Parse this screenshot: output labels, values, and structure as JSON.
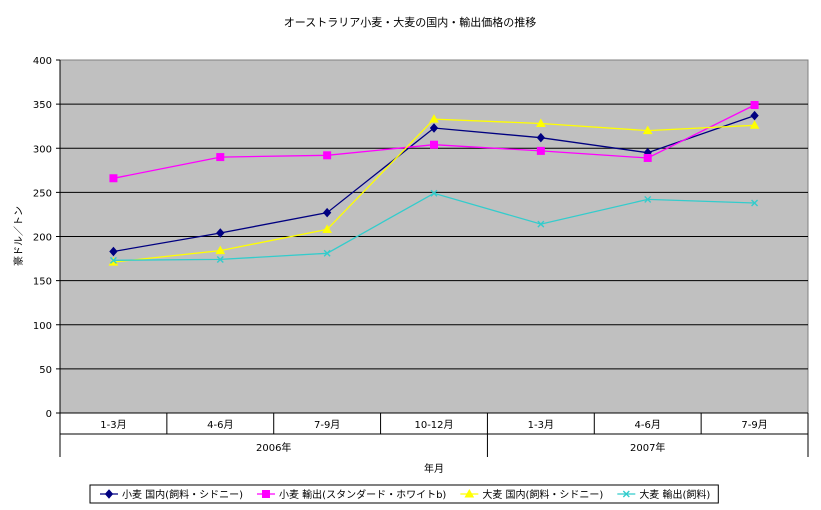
{
  "chart_data": {
    "type": "line",
    "title": "オーストラリア小麦・大麦の国内・輸出価格の推移",
    "xlabel": "年月",
    "ylabel": "豪ドル／トン",
    "ylim": [
      0,
      400
    ],
    "yticks": [
      "0",
      "50",
      "100",
      "150",
      "200",
      "250",
      "300",
      "350",
      "400"
    ],
    "categories": [
      "1-3月",
      "4-6月",
      "7-9月",
      "10-12月",
      "1-3月",
      "4-6月",
      "7-9月"
    ],
    "year_groups": [
      {
        "label": "2006年",
        "span": 4
      },
      {
        "label": "2007年",
        "span": 3
      }
    ],
    "grid": true,
    "legend_position": "bottom",
    "plot_background": "#c0c0c0",
    "series": [
      {
        "name": "小麦 国内(飼料・シドニー)",
        "color": "#000080",
        "marker": "diamond",
        "values": [
          183,
          204,
          227,
          323,
          312,
          295,
          337
        ]
      },
      {
        "name": "小麦 輸出(スタンダード・ホワイトb)",
        "color": "#ff00ff",
        "marker": "square",
        "values": [
          266,
          290,
          292,
          304,
          297,
          289,
          349
        ]
      },
      {
        "name": "大麦 国内(飼料・シドニー)",
        "color": "#ffff00",
        "marker": "triangle",
        "values": [
          171,
          184,
          208,
          333,
          328,
          320,
          326
        ]
      },
      {
        "name": "大麦 輸出(飼料)",
        "color": "#33cccc",
        "marker": "x",
        "values": [
          173,
          174,
          181,
          249,
          214,
          242,
          238
        ]
      }
    ]
  }
}
